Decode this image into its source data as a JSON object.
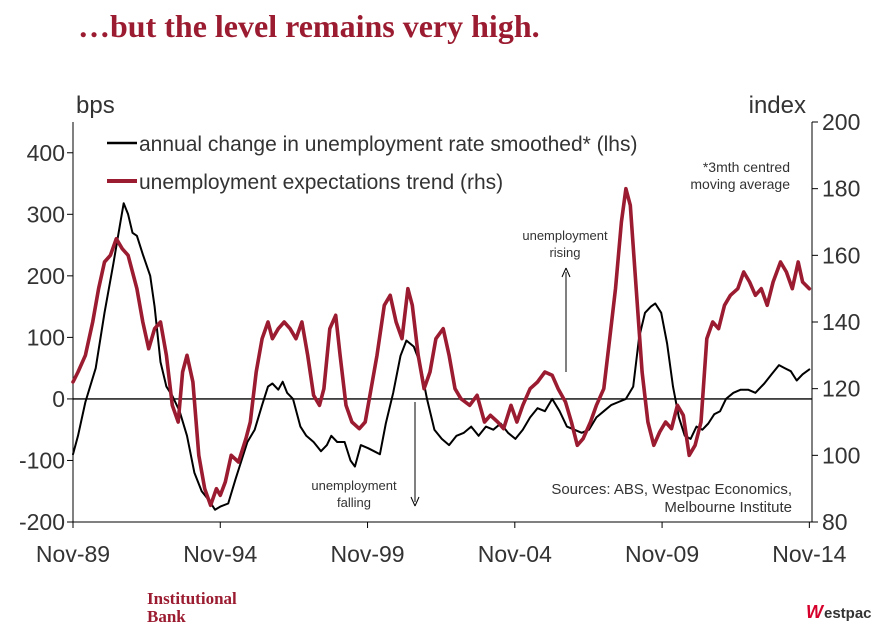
{
  "title": "…but the level remains very high.",
  "colors": {
    "accent": "#9b1b30",
    "series_black": "#000000",
    "series_red": "#9b1b30",
    "westpac_red": "#d5002b"
  },
  "logos": {
    "institutional": "Institutional",
    "bank": "Bank",
    "westpac_w": "W",
    "westpac_rest": "estpac"
  },
  "chart_data": {
    "type": "line",
    "title": "…but the level remains very high.",
    "left_axis": {
      "unit": "bps",
      "range": [
        -200,
        450
      ],
      "ticks": [
        400,
        300,
        200,
        100,
        0,
        -100,
        -200
      ]
    },
    "right_axis": {
      "unit": "index",
      "range": [
        80,
        200
      ],
      "ticks": [
        200,
        180,
        160,
        140,
        120,
        100,
        80
      ]
    },
    "x_range": [
      1989.83,
      2014.92
    ],
    "x_ticks": [
      {
        "label": "Nov-89",
        "x": 1989.83
      },
      {
        "label": "Nov-94",
        "x": 1994.83
      },
      {
        "label": "Nov-99",
        "x": 1999.83
      },
      {
        "label": "Nov-04",
        "x": 2004.83
      },
      {
        "label": "Nov-09",
        "x": 2009.83
      },
      {
        "label": "Nov-14",
        "x": 2014.83
      }
    ],
    "legend": [
      "annual change in unemployment rate smoothed* (lhs)",
      "unemployment expectations trend (rhs)"
    ],
    "footnote": [
      "*3mth centred",
      "moving average"
    ],
    "annotations": {
      "rising": [
        "unemployment",
        "rising"
      ],
      "falling": [
        "unemployment",
        "falling"
      ]
    },
    "source": [
      "Sources: ABS, Westpac Economics,",
      "Melbourne Institute"
    ],
    "series": [
      {
        "name": "annual change in unemployment rate smoothed* (lhs)",
        "axis": "left",
        "color": "#000000",
        "points": [
          [
            1989.83,
            -90
          ],
          [
            1990.0,
            -60
          ],
          [
            1990.25,
            -5
          ],
          [
            1990.6,
            50
          ],
          [
            1990.9,
            140
          ],
          [
            1991.2,
            220
          ],
          [
            1991.45,
            290
          ],
          [
            1991.55,
            318
          ],
          [
            1991.7,
            300
          ],
          [
            1991.85,
            270
          ],
          [
            1992.0,
            265
          ],
          [
            1992.2,
            235
          ],
          [
            1992.45,
            200
          ],
          [
            1992.6,
            150
          ],
          [
            1992.8,
            60
          ],
          [
            1993.0,
            20
          ],
          [
            1993.2,
            5
          ],
          [
            1993.45,
            -20
          ],
          [
            1993.7,
            -60
          ],
          [
            1993.95,
            -120
          ],
          [
            1994.2,
            -150
          ],
          [
            1994.45,
            -165
          ],
          [
            1994.65,
            -180
          ],
          [
            1994.83,
            -175
          ],
          [
            1995.1,
            -170
          ],
          [
            1995.35,
            -130
          ],
          [
            1995.55,
            -100
          ],
          [
            1995.75,
            -70
          ],
          [
            1996.0,
            -50
          ],
          [
            1996.25,
            -10
          ],
          [
            1996.45,
            20
          ],
          [
            1996.6,
            25
          ],
          [
            1996.8,
            15
          ],
          [
            1996.95,
            28
          ],
          [
            1997.1,
            10
          ],
          [
            1997.3,
            0
          ],
          [
            1997.55,
            -45
          ],
          [
            1997.75,
            -60
          ],
          [
            1998.0,
            -70
          ],
          [
            1998.25,
            -85
          ],
          [
            1998.45,
            -75
          ],
          [
            1998.6,
            -60
          ],
          [
            1998.8,
            -70
          ],
          [
            1999.05,
            -70
          ],
          [
            1999.25,
            -100
          ],
          [
            1999.4,
            -110
          ],
          [
            1999.6,
            -75
          ],
          [
            1999.85,
            -80
          ],
          [
            2000.05,
            -85
          ],
          [
            2000.25,
            -90
          ],
          [
            2000.45,
            -40
          ],
          [
            2000.7,
            10
          ],
          [
            2000.95,
            70
          ],
          [
            2001.15,
            95
          ],
          [
            2001.4,
            85
          ],
          [
            2001.6,
            60
          ],
          [
            2001.85,
            0
          ],
          [
            2002.1,
            -50
          ],
          [
            2002.35,
            -65
          ],
          [
            2002.6,
            -75
          ],
          [
            2002.85,
            -60
          ],
          [
            2003.1,
            -55
          ],
          [
            2003.35,
            -45
          ],
          [
            2003.6,
            -60
          ],
          [
            2003.85,
            -45
          ],
          [
            2004.1,
            -50
          ],
          [
            2004.35,
            -40
          ],
          [
            2004.6,
            -55
          ],
          [
            2004.85,
            -65
          ],
          [
            2005.1,
            -50
          ],
          [
            2005.35,
            -30
          ],
          [
            2005.6,
            -15
          ],
          [
            2005.85,
            -20
          ],
          [
            2006.1,
            0
          ],
          [
            2006.35,
            -20
          ],
          [
            2006.6,
            -45
          ],
          [
            2006.85,
            -50
          ],
          [
            2007.1,
            -55
          ],
          [
            2007.35,
            -50
          ],
          [
            2007.6,
            -30
          ],
          [
            2007.85,
            -20
          ],
          [
            2008.1,
            -10
          ],
          [
            2008.35,
            -5
          ],
          [
            2008.6,
            0
          ],
          [
            2008.85,
            20
          ],
          [
            2009.05,
            100
          ],
          [
            2009.25,
            140
          ],
          [
            2009.45,
            150
          ],
          [
            2009.6,
            155
          ],
          [
            2009.8,
            140
          ],
          [
            2010.0,
            90
          ],
          [
            2010.2,
            20
          ],
          [
            2010.4,
            -30
          ],
          [
            2010.6,
            -60
          ],
          [
            2010.8,
            -65
          ],
          [
            2011.0,
            -45
          ],
          [
            2011.2,
            -50
          ],
          [
            2011.4,
            -40
          ],
          [
            2011.6,
            -25
          ],
          [
            2011.8,
            -20
          ],
          [
            2012.0,
            0
          ],
          [
            2012.25,
            10
          ],
          [
            2012.5,
            15
          ],
          [
            2012.75,
            15
          ],
          [
            2013.0,
            10
          ],
          [
            2013.3,
            25
          ],
          [
            2013.55,
            40
          ],
          [
            2013.8,
            55
          ],
          [
            2014.0,
            50
          ],
          [
            2014.2,
            45
          ],
          [
            2014.4,
            30
          ],
          [
            2014.6,
            40
          ],
          [
            2014.83,
            48
          ]
        ]
      },
      {
        "name": "unemployment expectations trend (rhs)",
        "axis": "right",
        "color": "#9b1b30",
        "points": [
          [
            1989.83,
            122
          ],
          [
            1990.0,
            125
          ],
          [
            1990.25,
            130
          ],
          [
            1990.5,
            140
          ],
          [
            1990.7,
            150
          ],
          [
            1990.9,
            158
          ],
          [
            1991.1,
            160
          ],
          [
            1991.3,
            165
          ],
          [
            1991.5,
            162
          ],
          [
            1991.7,
            160
          ],
          [
            1991.85,
            155
          ],
          [
            1992.0,
            150
          ],
          [
            1992.2,
            140
          ],
          [
            1992.4,
            132
          ],
          [
            1992.6,
            138
          ],
          [
            1992.8,
            140
          ],
          [
            1993.0,
            130
          ],
          [
            1993.2,
            115
          ],
          [
            1993.4,
            110
          ],
          [
            1993.55,
            125
          ],
          [
            1993.7,
            130
          ],
          [
            1993.9,
            122
          ],
          [
            1994.1,
            100
          ],
          [
            1994.3,
            90
          ],
          [
            1994.5,
            85
          ],
          [
            1994.7,
            90
          ],
          [
            1994.83,
            88
          ],
          [
            1995.0,
            92
          ],
          [
            1995.2,
            100
          ],
          [
            1995.45,
            98
          ],
          [
            1995.7,
            105
          ],
          [
            1995.85,
            110
          ],
          [
            1996.05,
            125
          ],
          [
            1996.25,
            135
          ],
          [
            1996.45,
            140
          ],
          [
            1996.6,
            135
          ],
          [
            1996.8,
            138
          ],
          [
            1997.0,
            140
          ],
          [
            1997.2,
            138
          ],
          [
            1997.4,
            135
          ],
          [
            1997.6,
            140
          ],
          [
            1997.8,
            130
          ],
          [
            1998.0,
            118
          ],
          [
            1998.2,
            115
          ],
          [
            1998.35,
            120
          ],
          [
            1998.55,
            138
          ],
          [
            1998.75,
            142
          ],
          [
            1998.9,
            130
          ],
          [
            1999.1,
            115
          ],
          [
            1999.3,
            110
          ],
          [
            1999.55,
            108
          ],
          [
            1999.75,
            110
          ],
          [
            1999.95,
            120
          ],
          [
            2000.15,
            130
          ],
          [
            2000.4,
            145
          ],
          [
            2000.6,
            148
          ],
          [
            2000.8,
            140
          ],
          [
            2001.0,
            135
          ],
          [
            2001.2,
            150
          ],
          [
            2001.35,
            145
          ],
          [
            2001.55,
            130
          ],
          [
            2001.75,
            120
          ],
          [
            2001.95,
            125
          ],
          [
            2002.15,
            135
          ],
          [
            2002.4,
            138
          ],
          [
            2002.6,
            130
          ],
          [
            2002.8,
            120
          ],
          [
            2003.0,
            117
          ],
          [
            2003.3,
            115
          ],
          [
            2003.55,
            118
          ],
          [
            2003.8,
            110
          ],
          [
            2004.0,
            112
          ],
          [
            2004.25,
            110
          ],
          [
            2004.45,
            108
          ],
          [
            2004.7,
            115
          ],
          [
            2004.9,
            110
          ],
          [
            2005.1,
            115
          ],
          [
            2005.35,
            120
          ],
          [
            2005.6,
            122
          ],
          [
            2005.85,
            125
          ],
          [
            2006.1,
            124
          ],
          [
            2006.3,
            120
          ],
          [
            2006.55,
            116
          ],
          [
            2006.75,
            110
          ],
          [
            2006.95,
            103
          ],
          [
            2007.15,
            105
          ],
          [
            2007.4,
            110
          ],
          [
            2007.6,
            115
          ],
          [
            2007.85,
            120
          ],
          [
            2008.05,
            135
          ],
          [
            2008.25,
            150
          ],
          [
            2008.45,
            170
          ],
          [
            2008.6,
            180
          ],
          [
            2008.75,
            175
          ],
          [
            2008.95,
            150
          ],
          [
            2009.15,
            125
          ],
          [
            2009.35,
            110
          ],
          [
            2009.55,
            103
          ],
          [
            2009.75,
            107
          ],
          [
            2009.95,
            110
          ],
          [
            2010.15,
            108
          ],
          [
            2010.35,
            115
          ],
          [
            2010.55,
            112
          ],
          [
            2010.75,
            100
          ],
          [
            2010.95,
            103
          ],
          [
            2011.15,
            110
          ],
          [
            2011.35,
            135
          ],
          [
            2011.55,
            140
          ],
          [
            2011.75,
            138
          ],
          [
            2011.95,
            145
          ],
          [
            2012.15,
            148
          ],
          [
            2012.4,
            150
          ],
          [
            2012.6,
            155
          ],
          [
            2012.8,
            152
          ],
          [
            2013.0,
            148
          ],
          [
            2013.2,
            150
          ],
          [
            2013.4,
            145
          ],
          [
            2013.6,
            152
          ],
          [
            2013.85,
            158
          ],
          [
            2014.05,
            155
          ],
          [
            2014.25,
            150
          ],
          [
            2014.45,
            158
          ],
          [
            2014.6,
            152
          ],
          [
            2014.83,
            150
          ]
        ]
      }
    ]
  }
}
